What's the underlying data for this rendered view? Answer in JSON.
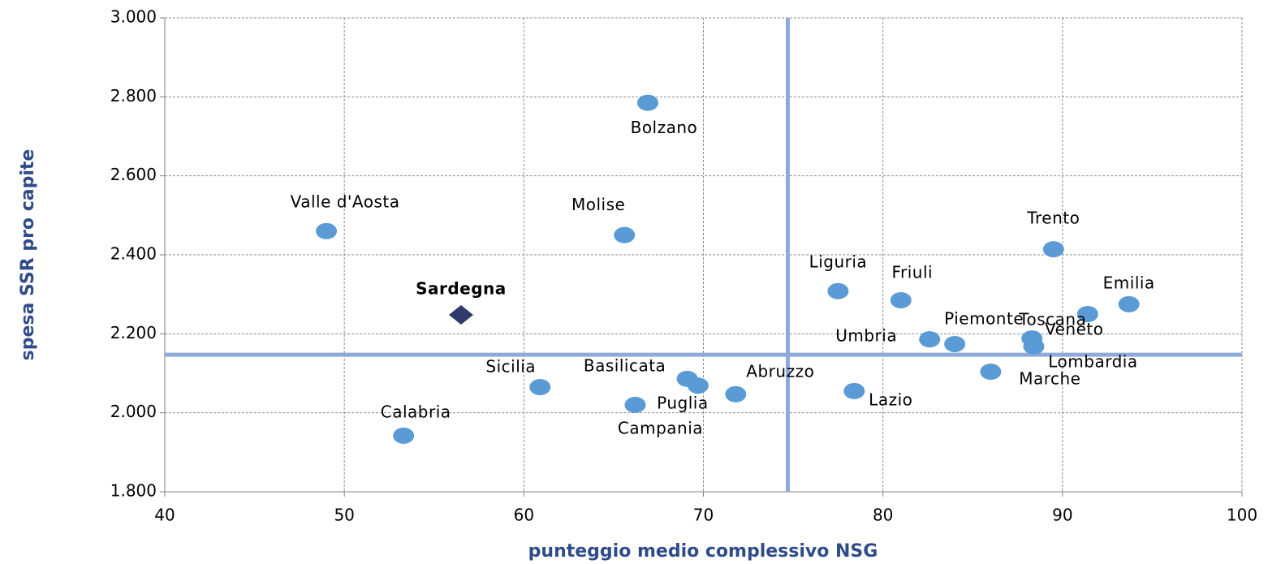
{
  "chart_data": {
    "type": "scatter",
    "x_label": "punteggio medio complessivo NSG",
    "y_label": "spesa SSR pro capite",
    "xlim": [
      40,
      100
    ],
    "ylim": [
      1800,
      3000
    ],
    "xticks": [
      40,
      50,
      60,
      70,
      80,
      90,
      100
    ],
    "yticks": [
      {
        "value": 1800,
        "label": "1.800"
      },
      {
        "value": 2000,
        "label": "2.000"
      },
      {
        "value": 2200,
        "label": "2.200"
      },
      {
        "value": 2400,
        "label": "2.400"
      },
      {
        "value": 2600,
        "label": "2.600"
      },
      {
        "value": 2800,
        "label": "2.800"
      },
      {
        "value": 3000,
        "label": "3.000"
      }
    ],
    "grid": true,
    "color": "#5b9bd5",
    "points": [
      {
        "label": "Valle d'Aosta",
        "x": 49.0,
        "y": 2460
      },
      {
        "label": "Bolzano",
        "x": 66.9,
        "y": 2785
      },
      {
        "label": "Molise",
        "x": 65.6,
        "y": 2450
      },
      {
        "label": "Sicilia",
        "x": 60.9,
        "y": 2065
      },
      {
        "label": "Calabria",
        "x": 53.3,
        "y": 1942
      },
      {
        "label": "Basilicata",
        "x": 69.1,
        "y": 2086
      },
      {
        "label": "Puglia",
        "x": 69.7,
        "y": 2069
      },
      {
        "label": "Campania",
        "x": 66.2,
        "y": 2020
      },
      {
        "label": "Abruzzo",
        "x": 71.8,
        "y": 2047
      },
      {
        "label": "Lazio",
        "x": 78.4,
        "y": 2055
      },
      {
        "label": "Liguria",
        "x": 77.5,
        "y": 2308
      },
      {
        "label": "Friuli",
        "x": 81.0,
        "y": 2285
      },
      {
        "label": "Umbria",
        "x": 82.6,
        "y": 2186
      },
      {
        "label": "Piemonte",
        "x": 84.0,
        "y": 2174
      },
      {
        "label": "Marche",
        "x": 86.0,
        "y": 2104
      },
      {
        "label": "Trento",
        "x": 89.5,
        "y": 2414
      },
      {
        "label": "Veneto",
        "x": 88.3,
        "y": 2188
      },
      {
        "label": "Lombardia",
        "x": 88.4,
        "y": 2168
      },
      {
        "label": "Toscana",
        "x": 91.4,
        "y": 2250
      },
      {
        "label": "Emilia",
        "x": 93.7,
        "y": 2275
      }
    ],
    "highlight": {
      "label": "Sardegna",
      "x": 56.5,
      "y": 2248,
      "color": "#2e3a6c",
      "marker": "diamond"
    },
    "reference_lines": {
      "x": 74.7,
      "y": 2147,
      "color": "#8eaadb"
    }
  }
}
